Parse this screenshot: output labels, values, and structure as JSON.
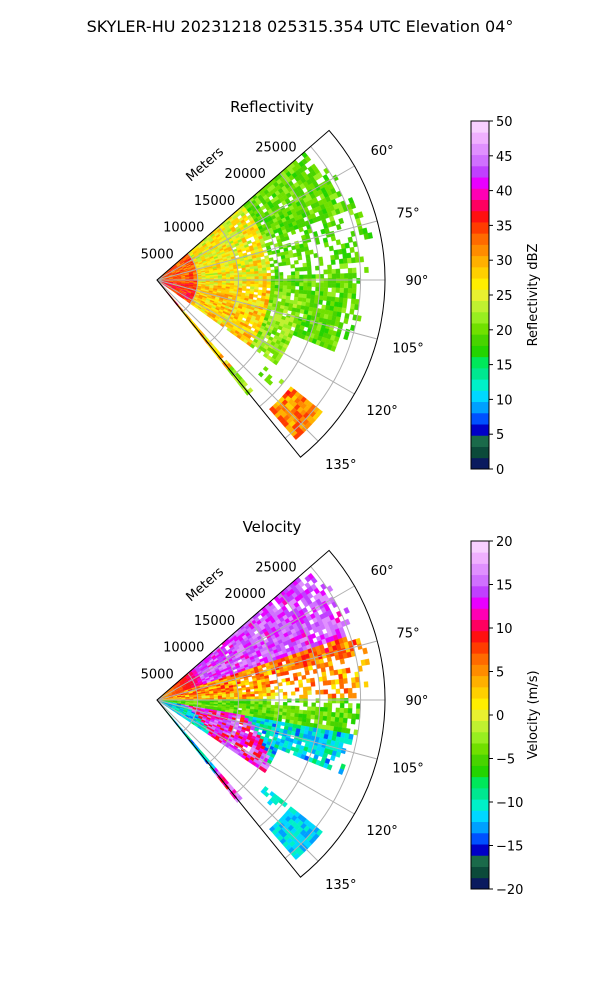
{
  "figure": {
    "suptitle": "SKYLER-HU  20231218  025315.354 UTC Elevation 04°"
  },
  "chart_data": [
    {
      "type": "heatmap",
      "subtype": "polar-sector PPI",
      "title": "Reflectivity",
      "range_label": "Meters",
      "range_ticks": [
        5000,
        10000,
        15000,
        20000,
        25000
      ],
      "rlim": [
        0,
        28000
      ],
      "azimuth_range_deg": [
        49,
        141
      ],
      "azimuth_ticks": [
        "60°",
        "75°",
        "90°",
        "105°",
        "120°",
        "135°"
      ],
      "azimuth_tick_values": [
        60,
        75,
        90,
        105,
        120,
        135
      ],
      "grid": true,
      "colorbar": {
        "label": "Reflectivity dBZ",
        "vmin": 0,
        "vmax": 50,
        "ticks": [
          "0",
          "5",
          "10",
          "15",
          "20",
          "25",
          "30",
          "35",
          "40",
          "45",
          "50"
        ],
        "colors": [
          "#0a1a5e",
          "#0b4a3a",
          "#1a6a4a",
          "#0000c8",
          "#0050ff",
          "#00a0ff",
          "#00d8ff",
          "#00f0c8",
          "#00e890",
          "#00e85a",
          "#24d400",
          "#48d400",
          "#70e000",
          "#98ee20",
          "#c0f030",
          "#e8f030",
          "#ffee00",
          "#ffd000",
          "#ffb000",
          "#ff8c00",
          "#ff6a00",
          "#ff3c00",
          "#ff1010",
          "#ff0060",
          "#ff00b4",
          "#e800ff",
          "#c040ff",
          "#d070ff",
          "#e090ff",
          "#f0b0ff",
          "#f8d0ff"
        ]
      },
      "regions": [
        {
          "name": "near-range band 0-5 km",
          "dBZ_approx": [
            30,
            37
          ]
        },
        {
          "name": "mid-range band 5-15 km",
          "dBZ_approx": [
            23,
            30
          ]
        },
        {
          "name": "far-range band 15-27 km",
          "dBZ_approx": [
            17,
            22
          ]
        },
        {
          "name": "isolated cell near 135° at ~24 km",
          "dBZ_approx": [
            28,
            36
          ]
        }
      ]
    },
    {
      "type": "heatmap",
      "subtype": "polar-sector PPI",
      "title": "Velocity",
      "range_label": "Meters",
      "range_ticks": [
        5000,
        10000,
        15000,
        20000,
        25000
      ],
      "rlim": [
        0,
        28000
      ],
      "azimuth_range_deg": [
        49,
        141
      ],
      "azimuth_ticks": [
        "60°",
        "75°",
        "90°",
        "105°",
        "120°",
        "135°"
      ],
      "azimuth_tick_values": [
        60,
        75,
        90,
        105,
        120,
        135
      ],
      "grid": true,
      "colorbar": {
        "label": "Velocity (m/s)",
        "vmin": -20,
        "vmax": 20,
        "ticks": [
          "−20",
          "−15",
          "−10",
          "−5",
          "0",
          "5",
          "10",
          "15",
          "20"
        ],
        "colors": [
          "#0a1a5e",
          "#0b4a3a",
          "#1a6a4a",
          "#0000c8",
          "#0050ff",
          "#00a0ff",
          "#00d8ff",
          "#00f0c8",
          "#00e890",
          "#00e85a",
          "#24d400",
          "#48d400",
          "#70e000",
          "#98ee20",
          "#c0f030",
          "#e8f030",
          "#ffee00",
          "#ffd000",
          "#ffb000",
          "#ff8c00",
          "#ff6a00",
          "#ff3c00",
          "#ff1010",
          "#ff0060",
          "#ff00b4",
          "#e800ff",
          "#c040ff",
          "#d070ff",
          "#e090ff",
          "#f0b0ff",
          "#f8d0ff"
        ]
      },
      "regions": [
        {
          "name": "northern sector 55-72° far range",
          "vel_approx": [
            12,
            17
          ]
        },
        {
          "name": "mid sector 72-90° mid range",
          "vel_approx": [
            3,
            10
          ]
        },
        {
          "name": "sector 90-100°",
          "vel_approx": [
            -8,
            -2
          ]
        },
        {
          "name": "southern sector 100-125°",
          "vel_approx": [
            -14,
            -8
          ]
        },
        {
          "name": "near-range southern arc 100-130° 3-12 km",
          "vel_approx": [
            8,
            17
          ]
        },
        {
          "name": "isolated cell near 135°",
          "vel_approx": [
            -12,
            -8
          ]
        }
      ]
    }
  ]
}
